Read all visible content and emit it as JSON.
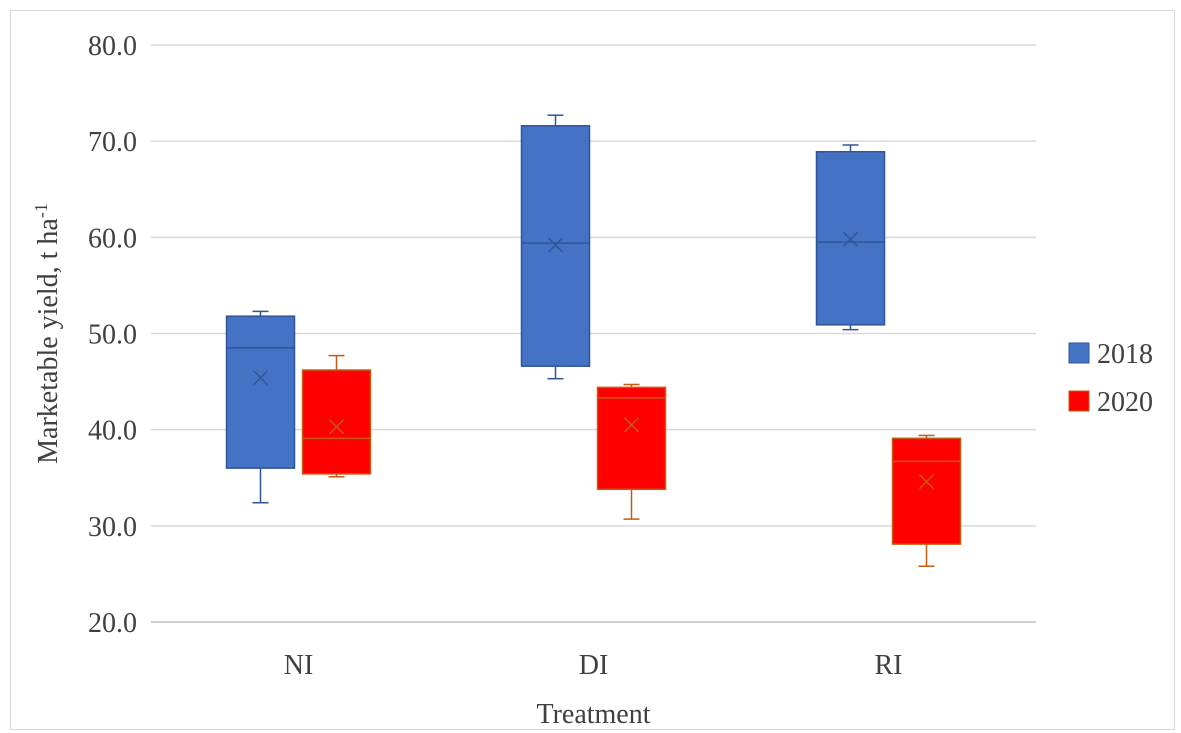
{
  "chart_data": {
    "type": "box",
    "xlabel": "Treatment",
    "ylabel": "Marketable yield, t ha",
    "ylabel_superscript": "-1",
    "ylim": [
      20,
      80
    ],
    "yticks": [
      20,
      30,
      40,
      50,
      60,
      70,
      80
    ],
    "ytick_labels": [
      "20.0",
      "30.0",
      "40.0",
      "50.0",
      "60.0",
      "70.0",
      "80.0"
    ],
    "categories": [
      "NI",
      "DI",
      "RI"
    ],
    "grid": true,
    "legend_position": "right",
    "series": [
      {
        "name": "2018",
        "color": "#4472c4",
        "stroke": "#2f5597",
        "boxes": [
          {
            "min": 32.4,
            "q1": 36.0,
            "median": 48.5,
            "q3": 51.8,
            "max": 52.3,
            "mean": 45.4
          },
          {
            "min": 45.3,
            "q1": 46.6,
            "median": 59.4,
            "q3": 71.6,
            "max": 72.7,
            "mean": 59.2
          },
          {
            "min": 50.4,
            "q1": 50.9,
            "median": 59.5,
            "q3": 68.9,
            "max": 69.6,
            "mean": 59.8
          }
        ]
      },
      {
        "name": "2020",
        "color": "#ff0000",
        "stroke": "#c55a11",
        "boxes": [
          {
            "min": 35.1,
            "q1": 35.4,
            "median": 39.1,
            "q3": 46.2,
            "max": 47.7,
            "mean": 40.3
          },
          {
            "min": 30.7,
            "q1": 33.8,
            "median": 43.3,
            "q3": 44.4,
            "max": 44.7,
            "mean": 40.5
          },
          {
            "min": 25.8,
            "q1": 28.1,
            "median": 36.7,
            "q3": 39.1,
            "max": 39.4,
            "mean": 34.6
          }
        ]
      }
    ]
  }
}
